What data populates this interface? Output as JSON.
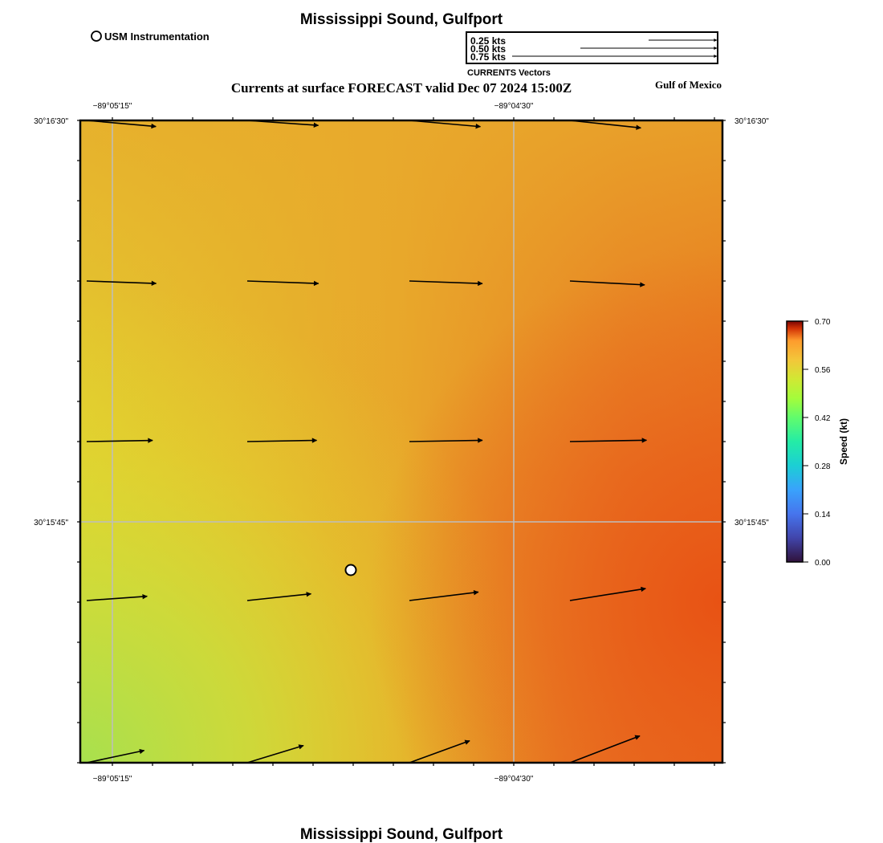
{
  "header": {
    "title": "Mississippi Sound, Gulfport",
    "subtitle": "Currents at surface FORECAST valid Dec 07 2024 15:00Z",
    "region": "Gulf of Mexico",
    "footer_title": "Mississippi Sound, Gulfport"
  },
  "legend": {
    "station_label": "USM Instrumentation",
    "vector_title": "CURRENTS Vectors",
    "vector_scale": [
      {
        "label": "0.25 kts",
        "speed": 0.25
      },
      {
        "label": "0.50 kts",
        "speed": 0.5
      },
      {
        "label": "0.75 kts",
        "speed": 0.75
      }
    ]
  },
  "axes": {
    "lon_labels": [
      "−89°05'15\"",
      "−89°04'30\""
    ],
    "lat_labels": [
      "30°16'30\"",
      "30°15'45\""
    ]
  },
  "colorbar": {
    "label": "Speed (kt)",
    "ticks": [
      "0.00",
      "0.14",
      "0.28",
      "0.42",
      "0.56",
      "0.70"
    ],
    "min": 0.0,
    "max": 0.7
  },
  "colors": {
    "speed_low": "#b3e04a",
    "speed_mid": "#e0d930",
    "speed_orange": "#e8a52a",
    "speed_high": "#e8581a",
    "grid": "#bdbdbd",
    "arrow": "#000000"
  },
  "station": {
    "name": "USM Instrumentation",
    "col_frac": 0.42,
    "row_frac": 0.7
  },
  "vectors": [
    {
      "row": 0,
      "col": 0,
      "speed": 0.39,
      "dir_deg": -5
    },
    {
      "row": 0,
      "col": 1,
      "speed": 0.4,
      "dir_deg": -4
    },
    {
      "row": 0,
      "col": 2,
      "speed": 0.4,
      "dir_deg": -5
    },
    {
      "row": 0,
      "col": 3,
      "speed": 0.4,
      "dir_deg": -6
    },
    {
      "row": 1,
      "col": 0,
      "speed": 0.39,
      "dir_deg": -2
    },
    {
      "row": 1,
      "col": 1,
      "speed": 0.4,
      "dir_deg": -2
    },
    {
      "row": 1,
      "col": 2,
      "speed": 0.41,
      "dir_deg": -2
    },
    {
      "row": 1,
      "col": 3,
      "speed": 0.42,
      "dir_deg": -3
    },
    {
      "row": 2,
      "col": 0,
      "speed": 0.37,
      "dir_deg": 1
    },
    {
      "row": 2,
      "col": 1,
      "speed": 0.39,
      "dir_deg": 1
    },
    {
      "row": 2,
      "col": 2,
      "speed": 0.41,
      "dir_deg": 1
    },
    {
      "row": 2,
      "col": 3,
      "speed": 0.43,
      "dir_deg": 1
    },
    {
      "row": 3,
      "col": 0,
      "speed": 0.34,
      "dir_deg": 4
    },
    {
      "row": 3,
      "col": 1,
      "speed": 0.36,
      "dir_deg": 6
    },
    {
      "row": 3,
      "col": 2,
      "speed": 0.39,
      "dir_deg": 7
    },
    {
      "row": 3,
      "col": 3,
      "speed": 0.43,
      "dir_deg": 9
    },
    {
      "row": 4,
      "col": 0,
      "speed": 0.33,
      "dir_deg": 12
    },
    {
      "row": 4,
      "col": 1,
      "speed": 0.33,
      "dir_deg": 17
    },
    {
      "row": 4,
      "col": 2,
      "speed": 0.36,
      "dir_deg": 20
    },
    {
      "row": 4,
      "col": 3,
      "speed": 0.42,
      "dir_deg": 21
    }
  ]
}
